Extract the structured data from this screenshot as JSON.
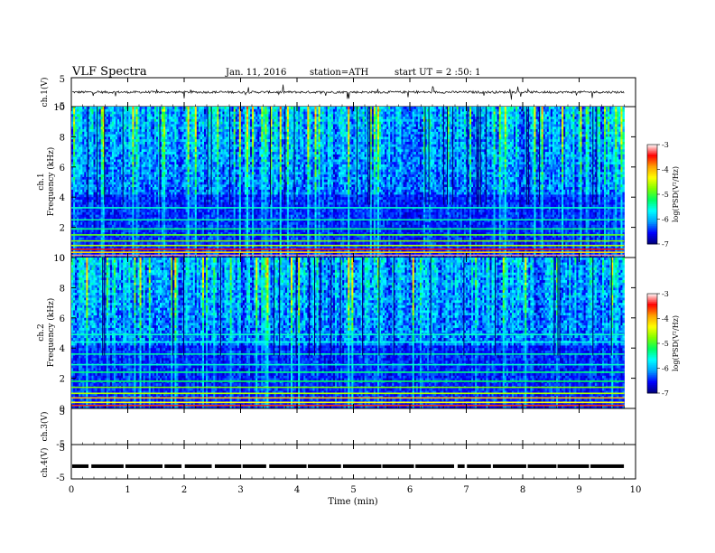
{
  "header": {
    "title": "VLF  Spectra",
    "date": "Jan. 11, 2016",
    "station": "station=ATH",
    "start": "start  UT  =   2  :50: 1"
  },
  "chart_data": [
    {
      "type": "line",
      "ylabel": "ch.1(V)",
      "ylim": [
        -5,
        5
      ],
      "yticks": [
        "5",
        "-5"
      ],
      "description_values": {
        "baseline": 0,
        "noise_amplitude": 0.8,
        "spike_max": 2.5
      }
    },
    {
      "type": "heatmap",
      "ylabel_channel": "ch.1",
      "ylabel": "Frequency  (kHz)",
      "ylim": [
        0,
        10
      ],
      "yticks": [
        "10",
        "8",
        "6",
        "4",
        "2",
        "0"
      ],
      "colorbar": {
        "label": "log(PSD(V²/Hz)",
        "range": [
          -7,
          -3
        ],
        "ticks": [
          "-3",
          "-4",
          "-5",
          "-6",
          "-7"
        ]
      },
      "colormap": [
        "#00007a",
        "#0000ff",
        "#00a0ff",
        "#00ffff",
        "#00ff60",
        "#80ff00",
        "#ffff00",
        "#ffa000",
        "#ff0000",
        "#ffffff"
      ],
      "bands_khz": [
        {
          "f": 0.15,
          "level": -3.2
        },
        {
          "f": 0.35,
          "level": -4.1
        },
        {
          "f": 0.55,
          "level": -3.5
        },
        {
          "f": 0.8,
          "level": -4.6
        },
        {
          "f": 1.1,
          "level": -4.8
        },
        {
          "f": 1.5,
          "level": -4.9
        },
        {
          "f": 1.9,
          "level": -5.3
        },
        {
          "f": 2.5,
          "level": -5.4
        },
        {
          "f": 3.3,
          "level": -5.5
        }
      ]
    },
    {
      "type": "heatmap",
      "ylabel_channel": "ch.2",
      "ylabel": "Frequency  (kHz)",
      "ylim": [
        0,
        10
      ],
      "yticks": [
        "10",
        "8",
        "6",
        "4",
        "2",
        "0"
      ],
      "colorbar": {
        "label": "log(PSD(V²/Hz)",
        "range": [
          -7,
          -3
        ],
        "ticks": [
          "-3",
          "-4",
          "-5",
          "-6",
          "-7"
        ]
      },
      "bands_khz": [
        {
          "f": 0.2,
          "level": -3.6
        },
        {
          "f": 0.4,
          "level": -4.3
        },
        {
          "f": 0.7,
          "level": -4.0
        },
        {
          "f": 1.0,
          "level": -4.6
        },
        {
          "f": 1.4,
          "level": -4.8
        },
        {
          "f": 1.8,
          "level": -5.2
        },
        {
          "f": 2.4,
          "level": -5.3
        },
        {
          "f": 2.9,
          "level": -5.5
        },
        {
          "f": 3.6,
          "level": -5.4
        },
        {
          "f": 4.4,
          "level": -5.6
        },
        {
          "f": 4.9,
          "level": -5.5
        }
      ]
    },
    {
      "type": "line",
      "ylabel": "ch.3(V)",
      "ylim": [
        -5,
        5
      ],
      "yticks": [
        "5",
        "-5"
      ]
    },
    {
      "type": "line",
      "ylabel": "ch.4(V)",
      "ylim": [
        -5,
        5
      ],
      "yticks": [
        "5",
        "-5"
      ],
      "description_values": {
        "level": -1.3
      }
    }
  ],
  "xaxis": {
    "label": "Time  (min)",
    "range": [
      0,
      10
    ],
    "ticks": [
      "0",
      "1",
      "2",
      "3",
      "4",
      "5",
      "6",
      "7",
      "8",
      "9",
      "10"
    ],
    "data_end": 9.8
  }
}
